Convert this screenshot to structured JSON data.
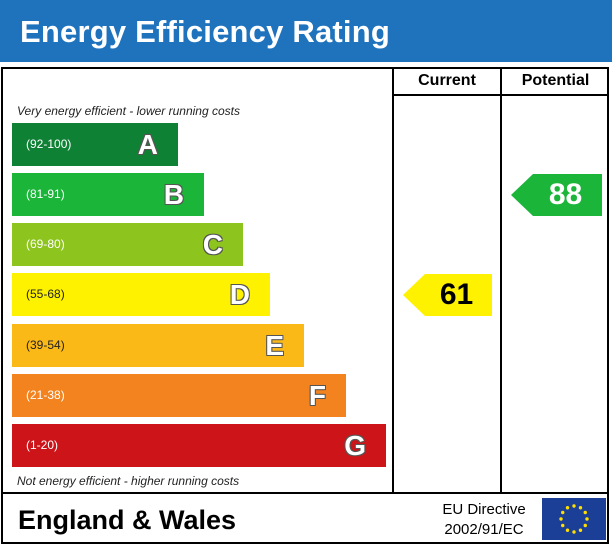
{
  "header": {
    "title": "Energy Efficiency Rating",
    "bg_color": "#1f73bd"
  },
  "columns": {
    "current": "Current",
    "potential": "Potential"
  },
  "captions": {
    "top": "Very energy efficient - lower running costs",
    "bottom": "Not energy efficient - higher running costs"
  },
  "chart_data": {
    "type": "bar",
    "title": "Energy Efficiency Rating",
    "categories": [
      "A",
      "B",
      "C",
      "D",
      "E",
      "F",
      "G"
    ],
    "bands": [
      {
        "letter": "A",
        "range": "(92-100)",
        "min": 92,
        "max": 100,
        "color": "#0f8135"
      },
      {
        "letter": "B",
        "range": "(81-91)",
        "min": 81,
        "max": 91,
        "color": "#1bb53a"
      },
      {
        "letter": "C",
        "range": "(69-80)",
        "min": 69,
        "max": 80,
        "color": "#8dc41e"
      },
      {
        "letter": "D",
        "range": "(55-68)",
        "min": 55,
        "max": 68,
        "color": "#fff200"
      },
      {
        "letter": "E",
        "range": "(39-54)",
        "min": 39,
        "max": 54,
        "color": "#fbb917"
      },
      {
        "letter": "F",
        "range": "(21-38)",
        "min": 21,
        "max": 38,
        "color": "#f2831f"
      },
      {
        "letter": "G",
        "range": "(1-20)",
        "min": 1,
        "max": 20,
        "color": "#cc1419"
      }
    ],
    "ratings": {
      "current": {
        "value": 61,
        "band": "D",
        "color": "#fff200",
        "text_color": "#000000"
      },
      "potential": {
        "value": 88,
        "band": "B",
        "color": "#1bb53a",
        "text_color": "#ffffff"
      }
    }
  },
  "footer": {
    "region": "England & Wales",
    "directive_line1": "EU Directive",
    "directive_line2": "2002/91/EC",
    "flag_color": "#1b3e97",
    "star_color": "#ffde00"
  }
}
